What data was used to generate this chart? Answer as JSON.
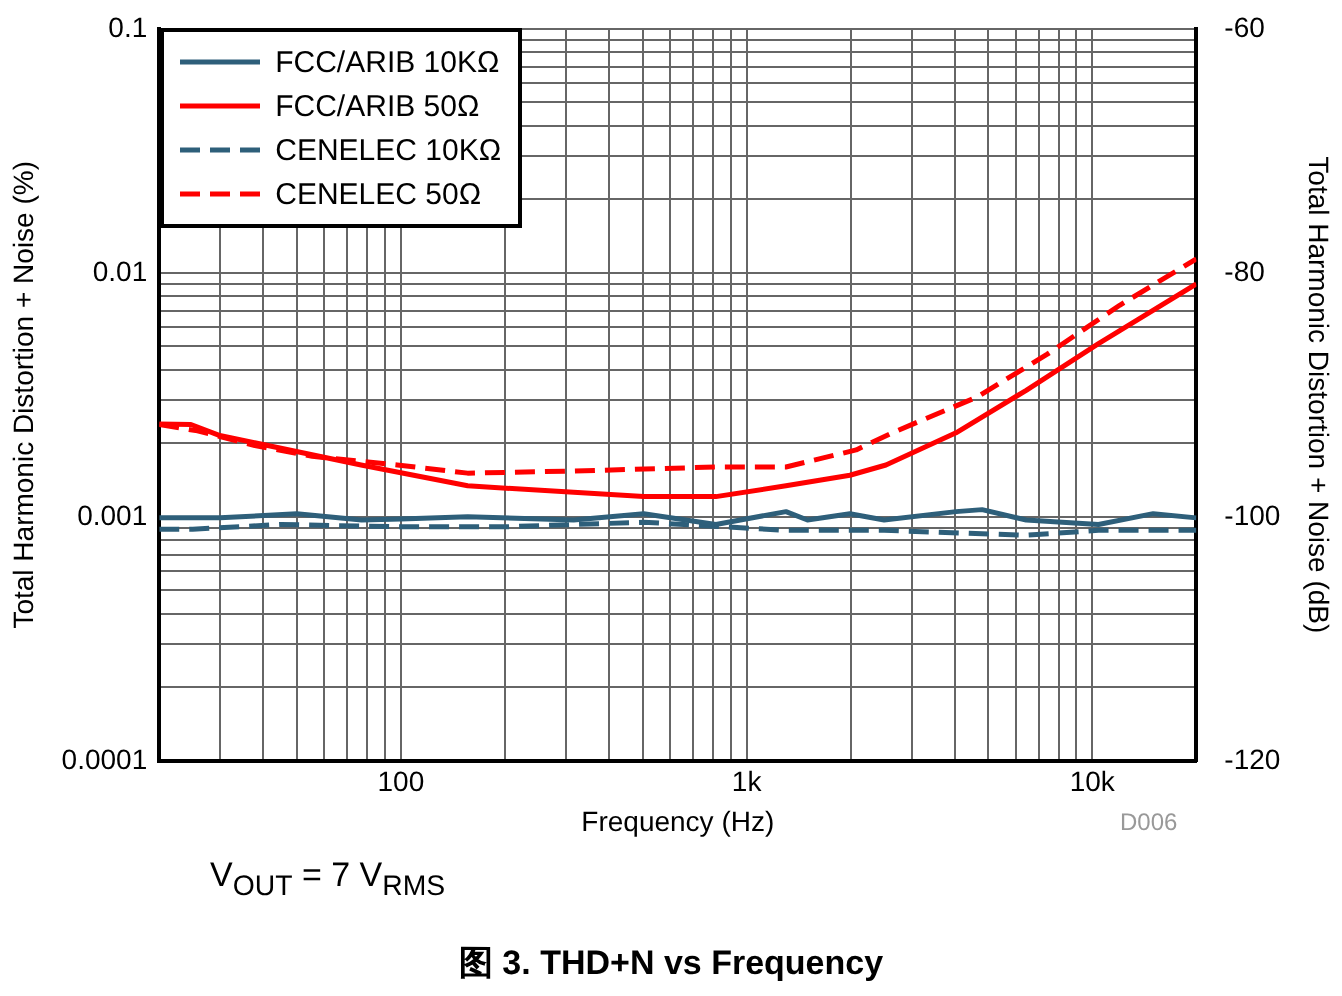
{
  "chart_data": {
    "type": "line",
    "title": "图 3. THD+N vs Frequency",
    "xlabel": "Frequency (Hz)",
    "ylabel": "Total Harmonic Distortion + Noise (%)",
    "y2label": "Total Harmonic Distortion + Noise (dB)",
    "log": "xy",
    "xlim": [
      20,
      20000
    ],
    "ylim": [
      0.0001,
      0.1
    ],
    "y2lim": [
      -120,
      -60
    ],
    "xticks": [
      {
        "value": 20,
        "label": null
      },
      {
        "value": 30,
        "label": null
      },
      {
        "value": 40,
        "label": null
      },
      {
        "value": 50,
        "label": null
      },
      {
        "value": 60,
        "label": null
      },
      {
        "value": 70,
        "label": null
      },
      {
        "value": 80,
        "label": null
      },
      {
        "value": 90,
        "label": null
      },
      100,
      {
        "value": 200,
        "label": null
      },
      {
        "value": 300,
        "label": null
      },
      {
        "value": 400,
        "label": null
      },
      {
        "value": 500,
        "label": null
      },
      {
        "value": 600,
        "label": null
      },
      {
        "value": 700,
        "label": null
      },
      {
        "value": 800,
        "label": null
      },
      {
        "value": 900,
        "label": null
      },
      {
        "value": 1000,
        "label": "1k"
      },
      {
        "value": 2000,
        "label": null
      },
      {
        "value": 3000,
        "label": null
      },
      {
        "value": 4000,
        "label": null
      },
      {
        "value": 5000,
        "label": null
      },
      {
        "value": 6000,
        "label": null
      },
      {
        "value": 7000,
        "label": null
      },
      {
        "value": 8000,
        "label": null
      },
      {
        "value": 9000,
        "label": null
      },
      {
        "value": 10000,
        "label": "10k"
      },
      {
        "value": 20000,
        "label": null
      }
    ],
    "yticks": [
      0.0001,
      {
        "value": 0.0002,
        "label": null
      },
      {
        "value": 0.0003,
        "label": null
      },
      {
        "value": 0.0004,
        "label": null
      },
      {
        "value": 0.0005,
        "label": null
      },
      {
        "value": 0.0006,
        "label": null
      },
      {
        "value": 0.0007,
        "label": null
      },
      {
        "value": 0.0008,
        "label": null
      },
      {
        "value": 0.0009,
        "label": null
      },
      0.001,
      {
        "value": 0.002,
        "label": null
      },
      {
        "value": 0.003,
        "label": null
      },
      {
        "value": 0.004,
        "label": null
      },
      {
        "value": 0.005,
        "label": null
      },
      {
        "value": 0.006,
        "label": null
      },
      {
        "value": 0.007,
        "label": null
      },
      {
        "value": 0.008,
        "label": null
      },
      {
        "value": 0.009,
        "label": null
      },
      0.01,
      {
        "value": 0.02,
        "label": null
      },
      {
        "value": 0.03,
        "label": null
      },
      {
        "value": 0.04,
        "label": null
      },
      {
        "value": 0.05,
        "label": null
      },
      {
        "value": 0.06,
        "label": null
      },
      {
        "value": 0.07,
        "label": null
      },
      {
        "value": 0.08,
        "label": null
      },
      {
        "value": 0.09,
        "label": null
      },
      0.1
    ],
    "y2ticks": [
      -120,
      -100,
      -80,
      -60
    ],
    "grid": true,
    "legend": "top left",
    "marker": "none",
    "annotations": [
      "D006",
      "V$_{OUT}$ = 7 V$_{RMS}$"
    ],
    "series": [
      {
        "name": "FCC/ARIB 10KΩ",
        "color": "#2e5f7a",
        "line_style": "solid",
        "x": [
          20,
          25,
          30,
          50,
          77,
          100,
          156,
          316,
          504,
          815,
          1300,
          1500,
          1990,
          2500,
          4035,
          4800,
          6440,
          10420,
          15000,
          20000
        ],
        "values": [
          0.00099,
          0.00099,
          0.00099,
          0.00103,
          0.00097,
          0.00098,
          0.001,
          0.00097,
          0.00103,
          0.00093,
          0.00105,
          0.00097,
          0.00103,
          0.00097,
          0.00105,
          0.00107,
          0.00097,
          0.00093,
          0.00103,
          0.00099
        ]
      },
      {
        "name": "FCC/ARIB 50Ω",
        "color": "#ff0000",
        "line_style": "solid",
        "x": [
          20,
          24.7,
          29.7,
          76.7,
          156,
          316,
          504,
          815,
          1300,
          1990,
          2530,
          4035,
          6440,
          10420,
          20000
        ],
        "values": [
          0.0024,
          0.00239,
          0.00216,
          0.00163,
          0.00134,
          0.00126,
          0.00121,
          0.00121,
          0.00134,
          0.00148,
          0.00163,
          0.00221,
          0.0033,
          0.00513,
          0.009
        ]
      },
      {
        "name": "CENELEC 10KΩ",
        "color": "#2e5f7a",
        "line_style": "dashed",
        "x": [
          20,
          25,
          45,
          98,
          200,
          504,
          1300,
          2500,
          6440,
          10420,
          20000
        ],
        "values": [
          0.00089,
          0.00089,
          0.00093,
          0.00091,
          0.00091,
          0.00095,
          0.00088,
          0.00088,
          0.00084,
          0.00088,
          0.00088
        ]
      },
      {
        "name": "CENELEC 50Ω",
        "color": "#ff0000",
        "line_style": "dashed",
        "x": [
          20,
          25.8,
          37.8,
          55.4,
          97.6,
          156,
          316,
          815,
          1300,
          2075,
          2640,
          4650,
          7410,
          12000,
          20000
        ],
        "values": [
          0.00239,
          0.00225,
          0.00196,
          0.00177,
          0.00163,
          0.00151,
          0.00154,
          0.0016,
          0.0016,
          0.00188,
          0.00221,
          0.0031,
          0.00464,
          0.00736,
          0.0114
        ]
      }
    ]
  }
}
